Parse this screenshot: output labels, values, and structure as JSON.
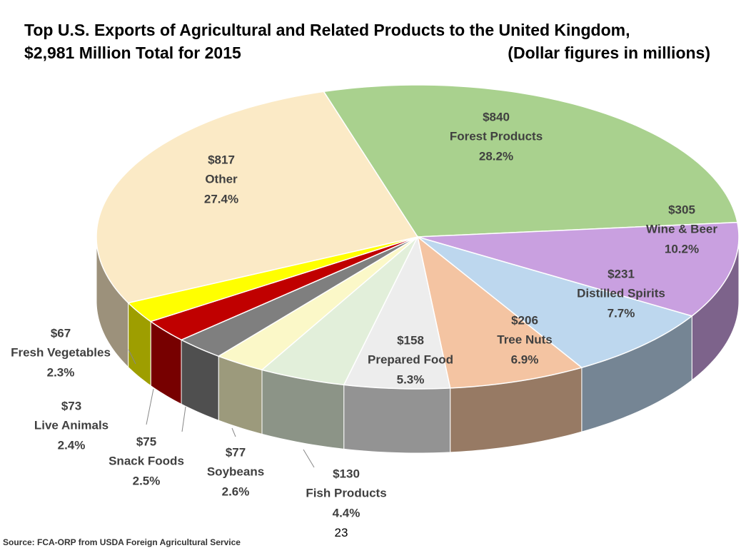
{
  "chart_data": {
    "type": "pie",
    "title": "Top U.S. Exports of Agricultural and Related Products to the United Kingdom,",
    "title_line2": "$2,981 Million Total for 2015",
    "subtitle": "(Dollar figures in millions)",
    "source": "Source: FCA-ORP from USDA Foreign Agricultural Service",
    "page_number": "23",
    "categories": [
      "Forest Products",
      "Wine & Beer",
      "Distilled Spirits",
      "Tree Nuts",
      "Prepared Food",
      "Fish Products",
      "Soybeans",
      "Snack Foods",
      "Live Animals",
      "Fresh Vegetables",
      "Other"
    ],
    "values": [
      840,
      305,
      231,
      206,
      158,
      130,
      77,
      75,
      73,
      67,
      817
    ],
    "value_labels": [
      "$840",
      "$305",
      "$231",
      "$206",
      "$158",
      "$130",
      "$77",
      "$75",
      "$73",
      "$67",
      "$817"
    ],
    "percent_labels": [
      "28.2%",
      "10.2%",
      "7.7%",
      "6.9%",
      "5.3%",
      "4.4%",
      "2.6%",
      "2.5%",
      "2.4%",
      "2.3%",
      "27.4%"
    ],
    "colors": [
      "#a9d18e",
      "#c9a0e0",
      "#bdd7ee",
      "#f4c4a2",
      "#ededed",
      "#e2efda",
      "#fbf8c8",
      "#7f7f7f",
      "#c00000",
      "#ffff00",
      "#fbeac6"
    ]
  }
}
